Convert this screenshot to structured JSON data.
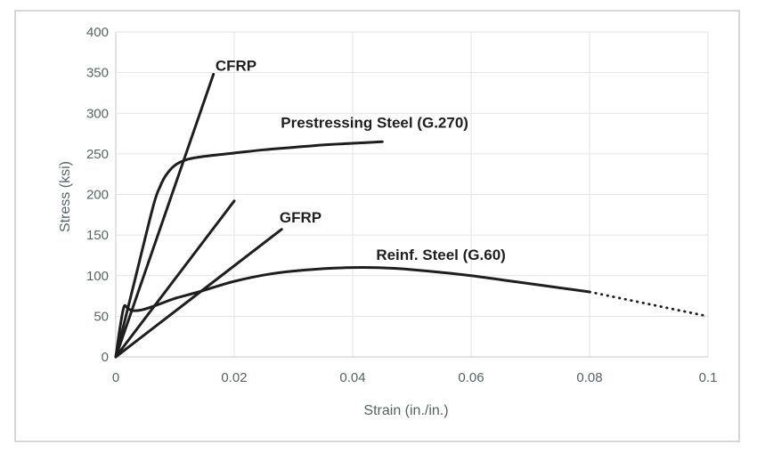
{
  "figure": {
    "background": "#ffffff",
    "border_color": "#d4d8d8"
  },
  "chart_data": {
    "type": "line",
    "title": "",
    "xlabel": "Strain (in./in.)",
    "ylabel": "Stress (ksi)",
    "xlim": [
      0,
      0.1
    ],
    "ylim": [
      0,
      400
    ],
    "grid": true,
    "legend_position": "none",
    "x_ticks": [
      0,
      0.02,
      0.04,
      0.06,
      0.08,
      0.1
    ],
    "x_tick_labels": [
      "0",
      "0.02",
      "0.04",
      "0.06",
      "0.08",
      "0.1"
    ],
    "y_ticks": [
      0,
      50,
      100,
      150,
      200,
      250,
      300,
      350,
      400
    ],
    "y_tick_labels": [
      "0",
      "50",
      "100",
      "150",
      "200",
      "250",
      "300",
      "350",
      "400"
    ],
    "colors": {
      "line": "#1e1e1e",
      "grid": "#e2e5e5",
      "axis": "#c3c8c8",
      "tick_label": "#5a6364",
      "annotation": "#1f1f1f"
    },
    "series": [
      {
        "name": "CFRP",
        "style": "solid",
        "smooth": false,
        "points": [
          [
            0,
            0
          ],
          [
            0.0165,
            348
          ]
        ]
      },
      {
        "name": "Prestressing Steel (G.270)",
        "style": "solid",
        "smooth": true,
        "points": [
          [
            0,
            0
          ],
          [
            0.003,
            88
          ],
          [
            0.0063,
            185
          ],
          [
            0.0075,
            210
          ],
          [
            0.0085,
            224
          ],
          [
            0.01,
            236
          ],
          [
            0.012,
            243
          ],
          [
            0.015,
            247
          ],
          [
            0.02,
            251
          ],
          [
            0.025,
            255
          ],
          [
            0.03,
            258
          ],
          [
            0.035,
            261
          ],
          [
            0.04,
            263
          ],
          [
            0.045,
            265
          ]
        ]
      },
      {
        "name": "unlabeled straight line",
        "style": "solid",
        "smooth": false,
        "points": [
          [
            0,
            0
          ],
          [
            0.02,
            192
          ]
        ]
      },
      {
        "name": "GFRP",
        "style": "solid",
        "smooth": false,
        "points": [
          [
            0,
            0
          ],
          [
            0.028,
            157
          ]
        ]
      },
      {
        "name": "Reinf. Steel (G.60)",
        "style": "solid",
        "smooth": true,
        "points": [
          [
            0,
            0
          ],
          [
            0.0008,
            40
          ],
          [
            0.0014,
            62
          ],
          [
            0.002,
            60
          ],
          [
            0.0028,
            57
          ],
          [
            0.0045,
            58
          ],
          [
            0.007,
            64
          ],
          [
            0.01,
            72
          ],
          [
            0.014,
            80
          ],
          [
            0.02,
            93
          ],
          [
            0.026,
            102
          ],
          [
            0.032,
            107
          ],
          [
            0.04,
            110
          ],
          [
            0.047,
            109
          ],
          [
            0.055,
            104
          ],
          [
            0.06,
            100
          ],
          [
            0.067,
            93
          ],
          [
            0.074,
            86
          ],
          [
            0.08,
            80
          ]
        ]
      },
      {
        "name": "Reinf. Steel (G.60) dotted tail",
        "style": "dotted",
        "smooth": false,
        "points": [
          [
            0.08,
            80
          ],
          [
            0.1,
            50
          ]
        ]
      }
    ],
    "annotations": [
      {
        "text": "CFRP",
        "x": 0.0203,
        "y": 359
      },
      {
        "text": "Prestressing Steel (G.270)",
        "x": 0.0437,
        "y": 289
      },
      {
        "text": "GFRP",
        "x": 0.0312,
        "y": 172
      },
      {
        "text": "Reinf. Steel (G.60)",
        "x": 0.0549,
        "y": 126
      }
    ]
  }
}
